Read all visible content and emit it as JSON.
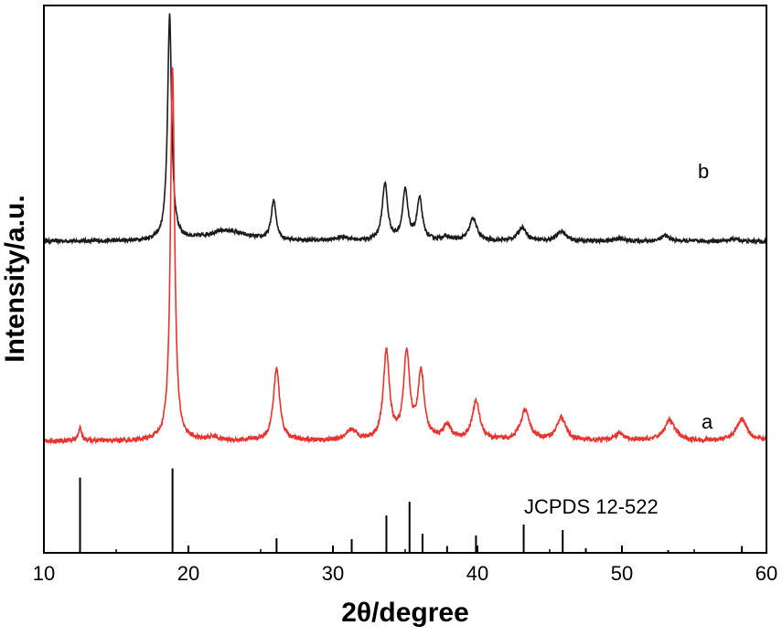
{
  "chart_data": {
    "type": "line",
    "title": "",
    "xlabel": "2θ/degree",
    "ylabel": "Intensity/a.u.",
    "xlim": [
      10,
      60
    ],
    "x_ticks": [
      10,
      20,
      30,
      40,
      50,
      60
    ],
    "x_tick_labels": [
      "10",
      "20",
      "30",
      "40",
      "50",
      "60"
    ],
    "y_ticks_shown": false,
    "grid": false,
    "series": [
      {
        "name": "b",
        "color": "#1a1a1a",
        "baseline": 0.83,
        "noise": 0.014,
        "peaks": [
          {
            "x": 18.7,
            "h": 4.95,
            "w": 0.17
          },
          {
            "x": 22.6,
            "h": 0.23,
            "w": 1.6
          },
          {
            "x": 25.9,
            "h": 0.85,
            "w": 0.2
          },
          {
            "x": 30.7,
            "h": 0.08,
            "w": 0.5
          },
          {
            "x": 33.6,
            "h": 1.25,
            "w": 0.22
          },
          {
            "x": 35.0,
            "h": 1.08,
            "w": 0.22
          },
          {
            "x": 36.0,
            "h": 0.9,
            "w": 0.22
          },
          {
            "x": 37.8,
            "h": 0.08,
            "w": 0.4
          },
          {
            "x": 39.7,
            "h": 0.5,
            "w": 0.3
          },
          {
            "x": 43.1,
            "h": 0.3,
            "w": 0.35
          },
          {
            "x": 45.8,
            "h": 0.22,
            "w": 0.35
          },
          {
            "x": 49.8,
            "h": 0.06,
            "w": 0.4
          },
          {
            "x": 53.0,
            "h": 0.12,
            "w": 0.35
          },
          {
            "x": 57.8,
            "h": 0.05,
            "w": 0.4
          }
        ]
      },
      {
        "name": "a",
        "color": "#e8332e",
        "baseline": -3.55,
        "noise": 0.016,
        "peaks": [
          {
            "x": 12.5,
            "h": 0.28,
            "w": 0.15
          },
          {
            "x": 18.9,
            "h": 8.2,
            "w": 0.17
          },
          {
            "x": 21.7,
            "h": 0.08,
            "w": 0.4
          },
          {
            "x": 26.1,
            "h": 1.58,
            "w": 0.26
          },
          {
            "x": 31.3,
            "h": 0.22,
            "w": 0.4
          },
          {
            "x": 33.7,
            "h": 1.95,
            "w": 0.25
          },
          {
            "x": 35.1,
            "h": 1.88,
            "w": 0.25
          },
          {
            "x": 36.1,
            "h": 1.45,
            "w": 0.26
          },
          {
            "x": 37.9,
            "h": 0.3,
            "w": 0.35
          },
          {
            "x": 39.9,
            "h": 0.85,
            "w": 0.32
          },
          {
            "x": 43.3,
            "h": 0.65,
            "w": 0.38
          },
          {
            "x": 45.8,
            "h": 0.5,
            "w": 0.38
          },
          {
            "x": 49.8,
            "h": 0.15,
            "w": 0.4
          },
          {
            "x": 53.3,
            "h": 0.45,
            "w": 0.45
          },
          {
            "x": 58.3,
            "h": 0.48,
            "w": 0.45
          }
        ]
      }
    ],
    "reference": {
      "name": "JCPDS 12-522",
      "lines": [
        {
          "x": 12.5,
          "h": 1.65
        },
        {
          "x": 18.9,
          "h": 1.85
        },
        {
          "x": 26.1,
          "h": 0.32
        },
        {
          "x": 31.3,
          "h": 0.3
        },
        {
          "x": 33.7,
          "h": 0.82
        },
        {
          "x": 35.3,
          "h": 1.12
        },
        {
          "x": 36.2,
          "h": 0.42
        },
        {
          "x": 37.9,
          "h": 0.15
        },
        {
          "x": 39.9,
          "h": 0.38
        },
        {
          "x": 43.2,
          "h": 0.62
        },
        {
          "x": 45.9,
          "h": 0.5
        },
        {
          "x": 47.5,
          "h": 0.1
        },
        {
          "x": 53.2,
          "h": 0.06
        },
        {
          "x": 58.3,
          "h": 0.15
        }
      ]
    },
    "ylim": [
      -6.0,
      6.0
    ]
  }
}
